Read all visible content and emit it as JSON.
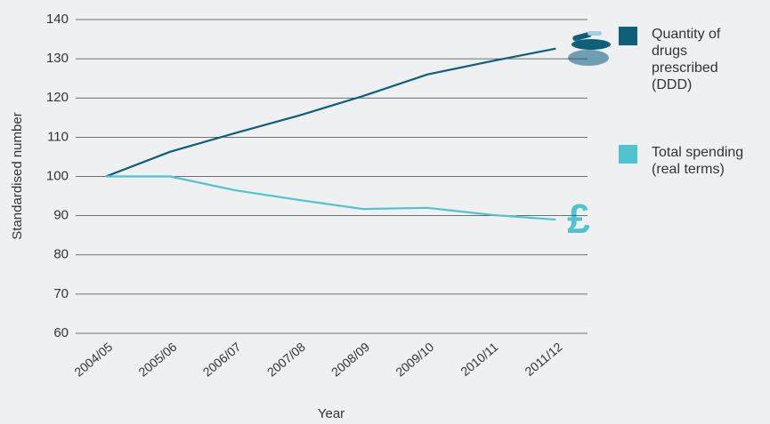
{
  "chart_data": {
    "type": "line",
    "xlabel": "Year",
    "ylabel": "Standardised number",
    "categories": [
      "2004/05",
      "2005/06",
      "2006/07",
      "2007/08",
      "2008/09",
      "2009/10",
      "2010/11",
      "2011/12"
    ],
    "series": [
      {
        "name": "Quantity of drugs prescribed (DDD)",
        "color": "#0f5f7a",
        "values": [
          100,
          106.3,
          111,
          115.5,
          120.5,
          126,
          129.4,
          132.6
        ]
      },
      {
        "name": "Total spending (real terms)",
        "color": "#4fc3cf",
        "values": [
          100,
          100,
          96.5,
          94,
          91.7,
          92,
          90.2,
          89
        ]
      }
    ],
    "annotations": [
      "£"
    ],
    "ylim": [
      60,
      140
    ],
    "yticks": [
      60,
      70,
      80,
      90,
      100,
      110,
      120,
      130,
      140
    ],
    "grid": true,
    "legend": "right"
  }
}
